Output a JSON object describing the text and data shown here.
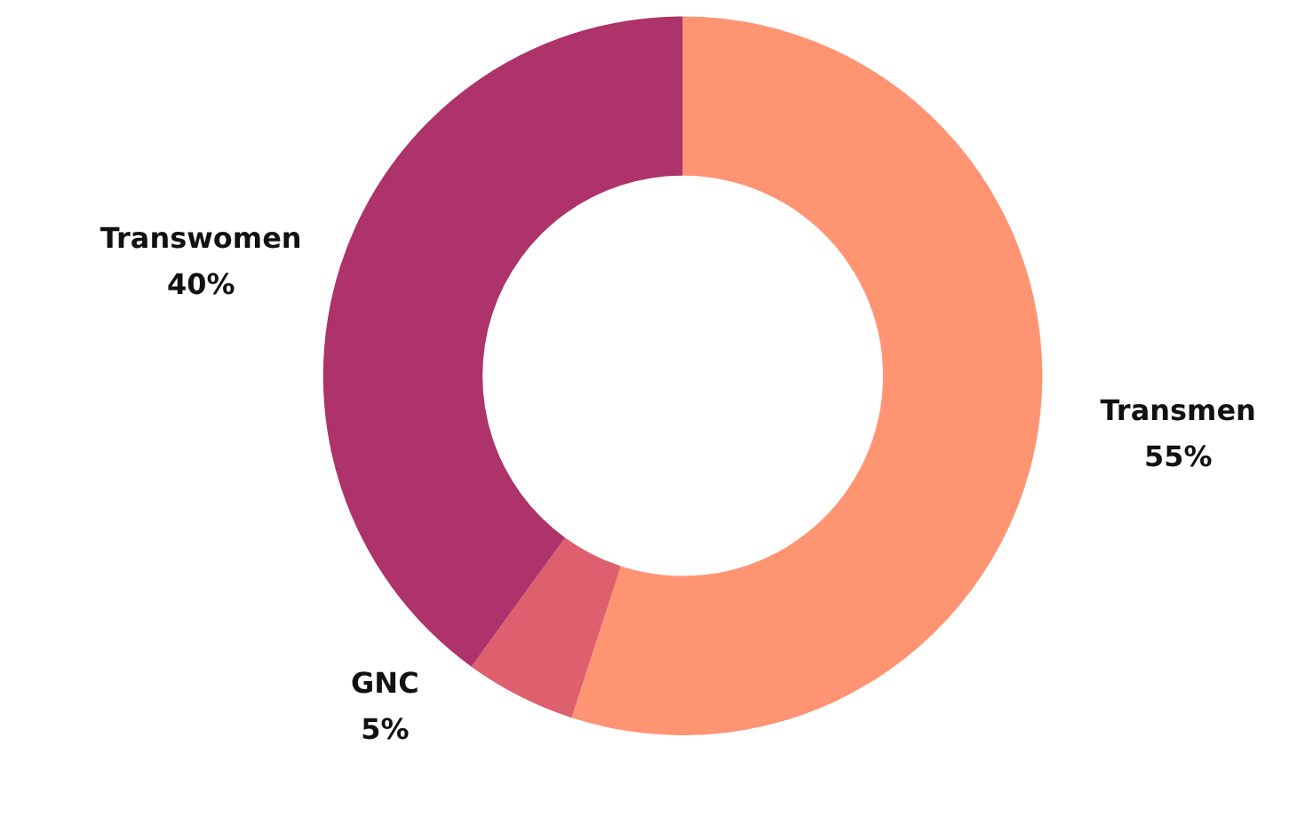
{
  "chart_data": {
    "type": "donut",
    "categories": [
      "Transmen",
      "GNC",
      "Transwomen"
    ],
    "values": [
      55,
      5,
      40
    ],
    "value_labels": [
      "55%",
      "5%",
      "40%"
    ],
    "colors": [
      "#ff9473",
      "#de5f6e",
      "#ad336a"
    ],
    "legend": false
  }
}
